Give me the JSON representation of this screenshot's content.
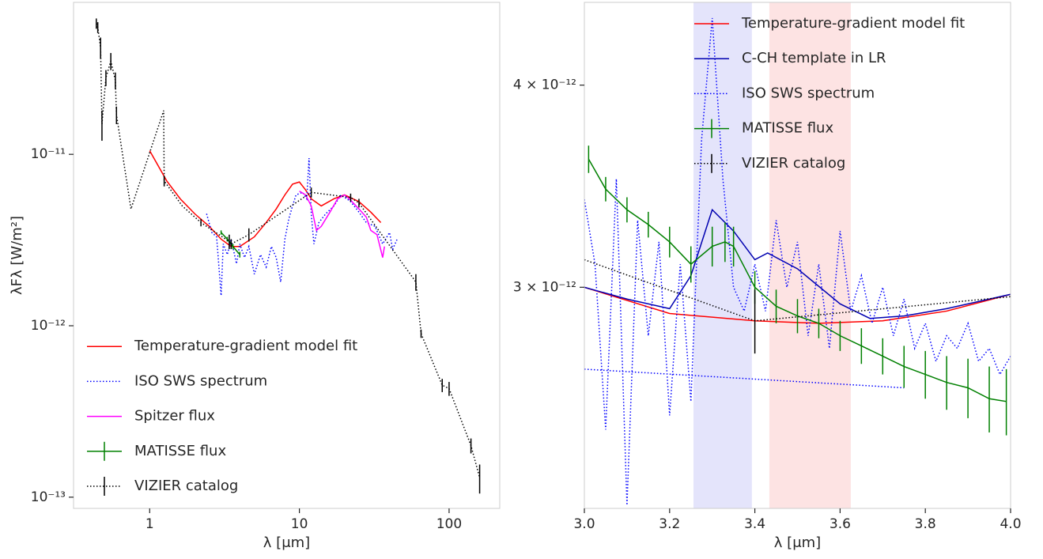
{
  "chart_data": [
    {
      "type": "line",
      "xscale": "log",
      "yscale": "log",
      "xlabel": "λ [μm]",
      "ylabel": "λFλ [W/m²]",
      "xlim": [
        0.31,
        218
      ],
      "ylim": [
        8.6e-14,
        7.7e-11
      ],
      "xticks": [
        1,
        10,
        100
      ],
      "yticks": [
        {
          "value": 1e-11,
          "label": "10⁻¹¹"
        },
        {
          "value": 1e-12,
          "label": "10⁻¹²"
        },
        {
          "value": 1e-13,
          "label": "10⁻¹³"
        }
      ],
      "legend": "lower left",
      "series": [
        {
          "name": "Temperature-gradient model fit",
          "color": "#ff0000",
          "linestyle": "solid",
          "x": [
            1.0,
            1.3,
            1.6,
            2,
            2.5,
            3,
            3.5,
            4,
            5,
            6,
            7,
            8,
            9,
            10,
            11,
            12,
            14,
            17,
            20,
            25,
            30,
            35
          ],
          "values": [
            1.05e-11,
            7e-12,
            5.5e-12,
            4.5e-12,
            3.8e-12,
            3.2e-12,
            2.9e-12,
            2.9e-12,
            3.3e-12,
            4e-12,
            4.8e-12,
            5.8e-12,
            6.7e-12,
            6.9e-12,
            6.2e-12,
            5.5e-12,
            5e-12,
            5.5e-12,
            5.8e-12,
            5.3e-12,
            4.6e-12,
            4e-12
          ]
        },
        {
          "name": "ISO SWS spectrum",
          "color": "#0000ff",
          "linestyle": "dotted",
          "x": [
            2.4,
            2.6,
            2.8,
            3.0,
            3.1,
            3.3,
            3.5,
            3.8,
            4.0,
            4.3,
            4.6,
            5.0,
            5.5,
            6.0,
            6.5,
            7.0,
            7.5,
            8.0,
            8.5,
            9.0,
            9.5,
            10.5,
            11.2,
            11.6,
            12,
            12.5,
            13.5,
            15,
            17,
            19,
            22,
            25,
            28,
            32,
            36,
            40,
            42,
            45
          ],
          "values": [
            4.5e-12,
            3.5e-12,
            3.3e-12,
            1.5e-12,
            3e-12,
            2.6e-12,
            3.2e-12,
            2.3e-12,
            3e-12,
            2.5e-12,
            2.9e-12,
            2e-12,
            2.6e-12,
            2.2e-12,
            2.9e-12,
            2.5e-12,
            1.8e-12,
            3.2e-12,
            4.2e-12,
            5e-12,
            5.8e-12,
            6e-12,
            5.5e-12,
            9.5e-12,
            4.5e-12,
            3e-12,
            4e-12,
            4.5e-12,
            5e-12,
            5.8e-12,
            5.3e-12,
            4.6e-12,
            4e-12,
            3.8e-12,
            3e-12,
            3.5e-12,
            2.8e-12,
            3.2e-12
          ]
        },
        {
          "name": "Spitzer flux",
          "color": "#ff00ff",
          "linestyle": "solid",
          "x": [
            10,
            11,
            12,
            13,
            14,
            16,
            18,
            20,
            22,
            25,
            28,
            30,
            33,
            36,
            37
          ],
          "values": [
            6.1e-12,
            5.8e-12,
            5e-12,
            3.6e-12,
            3.8e-12,
            4.6e-12,
            5.5e-12,
            5.8e-12,
            5.4e-12,
            4.8e-12,
            4.3e-12,
            3.6e-12,
            3.4e-12,
            2.5e-12,
            2.9e-12
          ]
        },
        {
          "name": "MATISSE flux",
          "color": "#008000",
          "linestyle": "solid",
          "x": [
            3.0,
            3.3,
            3.6,
            4.0
          ],
          "values": [
            3.5e-12,
            3.2e-12,
            2.9e-12,
            2.6e-12
          ],
          "errors": [
            1e-13,
            1e-13,
            1e-13,
            1e-13
          ]
        },
        {
          "name": "VIZIER catalog",
          "color": "#000000",
          "linestyle": "dotted",
          "x": [
            0.44,
            0.45,
            0.47,
            0.48,
            0.51,
            0.55,
            0.59,
            0.6,
            0.75,
            1.24,
            1.25,
            1.65,
            2.2,
            3.4,
            3.5,
            4.6,
            12,
            22,
            25,
            60,
            65,
            90,
            100,
            140,
            160
          ],
          "values": [
            5.8e-11,
            5.5e-11,
            4.2e-11,
            1.5e-11,
            2.8e-11,
            3.5e-11,
            2.7e-11,
            1.7e-11,
            4.8e-12,
            1.8e-11,
            7e-12,
            5e-12,
            4e-12,
            3.1e-12,
            3e-12,
            3.4e-12,
            6e-12,
            5.6e-12,
            5.2e-12,
            1.8e-12,
            9e-13,
            4.5e-13,
            4.3e-13,
            2e-13,
            1.3e-13
          ],
          "errors": [
            4e-12,
            4e-12,
            6e-12,
            3e-12,
            3e-12,
            4e-12,
            3e-12,
            2e-12,
            null,
            null,
            5e-13,
            null,
            2e-13,
            3e-13,
            2e-13,
            3e-13,
            4e-13,
            3e-13,
            3e-13,
            2e-13,
            5e-14,
            4e-14,
            4e-14,
            2e-14,
            2.5e-14
          ]
        }
      ]
    },
    {
      "type": "line",
      "xscale": "linear",
      "yscale": "log",
      "xlabel": "λ [μm]",
      "xlim": [
        3.0,
        4.0
      ],
      "ylim": [
        2.19e-12,
        4.5e-12
      ],
      "xticks": [
        {
          "value": 3,
          "label": "3.0"
        },
        3.2,
        3.4,
        3.6,
        3.8,
        {
          "value": 4,
          "label": "4.0"
        }
      ],
      "yticks": [
        {
          "value": 4e-12,
          "label": "4 × 10⁻¹²"
        },
        {
          "value": 3e-12,
          "label": "3 × 10⁻¹²"
        }
      ],
      "legend": "upper right",
      "bands": [
        {
          "x": [
            3.256,
            3.393
          ],
          "color": "#e4e4fb"
        },
        {
          "x": [
            3.434,
            3.625
          ],
          "color": "#fde3e3"
        }
      ],
      "series": [
        {
          "name": "Temperature-gradient model fit",
          "color": "#ff0000",
          "linestyle": "solid",
          "x": [
            3.0,
            3.2,
            3.4,
            3.55,
            3.7,
            3.85,
            4.0
          ],
          "values": [
            3e-12,
            2.89e-12,
            2.86e-12,
            2.85e-12,
            2.86e-12,
            2.9e-12,
            2.97e-12
          ]
        },
        {
          "name": "C-CH template in LR",
          "color": "#0000b0",
          "linestyle": "solid",
          "x": [
            3.0,
            3.1,
            3.2,
            3.25,
            3.3,
            3.35,
            3.4,
            3.43,
            3.5,
            3.6,
            3.67,
            3.75,
            3.85,
            4.0
          ],
          "values": [
            3e-12,
            2.95e-12,
            2.91e-12,
            3.05e-12,
            3.35e-12,
            3.25e-12,
            3.12e-12,
            3.15e-12,
            3.08e-12,
            2.93e-12,
            2.87e-12,
            2.88e-12,
            2.91e-12,
            2.97e-12
          ]
        },
        {
          "name": "ISO SWS spectrum",
          "color": "#0000ff",
          "linestyle": "dotted",
          "x": [
            3.0,
            3.025,
            3.05,
            3.075,
            3.1,
            3.125,
            3.15,
            3.175,
            3.2,
            3.225,
            3.25,
            3.275,
            3.3,
            3.325,
            3.35,
            3.375,
            3.4,
            3.425,
            3.45,
            3.475,
            3.5,
            3.525,
            3.55,
            3.575,
            3.6,
            3.625,
            3.65,
            3.675,
            3.7,
            3.725,
            3.75,
            3.775,
            3.8,
            3.825,
            3.85,
            3.875,
            3.9,
            3.925,
            3.95,
            3.975,
            4.0,
            null,
            3.0,
            3.75
          ],
          "values": [
            3.4e-12,
            3.1e-12,
            2.45e-12,
            3.5e-12,
            2.2e-12,
            3.3e-12,
            2.8e-12,
            3.2e-12,
            2.5e-12,
            3.1e-12,
            2.55e-12,
            3.7e-12,
            4.4e-12,
            3.5e-12,
            3e-12,
            2.9e-12,
            3.1e-12,
            2.9e-12,
            3.3e-12,
            3e-12,
            3.2e-12,
            2.8e-12,
            3.1e-12,
            2.75e-12,
            3.25e-12,
            2.9e-12,
            3.05e-12,
            2.85e-12,
            3e-12,
            2.8e-12,
            2.95e-12,
            2.75e-12,
            2.85e-12,
            2.7e-12,
            2.8e-12,
            2.75e-12,
            2.85e-12,
            2.7e-12,
            2.75e-12,
            2.65e-12,
            2.72e-12,
            null,
            2.67e-12,
            2.6e-12
          ]
        },
        {
          "name": "MATISSE flux",
          "color": "#008000",
          "linestyle": "solid",
          "x": [
            3.01,
            3.05,
            3.1,
            3.15,
            3.2,
            3.25,
            3.3,
            3.33,
            3.35,
            3.4,
            3.45,
            3.5,
            3.55,
            3.6,
            3.65,
            3.7,
            3.75,
            3.8,
            3.85,
            3.9,
            3.95,
            3.99
          ],
          "values": [
            3.6e-12,
            3.45e-12,
            3.35e-12,
            3.28e-12,
            3.2e-12,
            3.1e-12,
            3.18e-12,
            3.2e-12,
            3.18e-12,
            3e-12,
            2.92e-12,
            2.88e-12,
            2.85e-12,
            2.8e-12,
            2.76e-12,
            2.72e-12,
            2.68e-12,
            2.65e-12,
            2.62e-12,
            2.6e-12,
            2.56e-12,
            2.55e-12
          ],
          "errors": [
            7e-14,
            6e-14,
            6e-14,
            6e-14,
            7e-14,
            8e-14,
            9e-14,
            9e-14,
            9e-14,
            7e-14,
            7e-14,
            7e-14,
            6e-14,
            6e-14,
            7e-14,
            7e-14,
            8e-14,
            9e-14,
            1e-13,
            1.1e-13,
            1.2e-13,
            1.2e-13
          ]
        },
        {
          "name": "VIZIER catalog",
          "color": "#000000",
          "linestyle": "dotted",
          "x": [
            3.0,
            3.4,
            4.0
          ],
          "values": [
            3.12e-12,
            2.86e-12,
            2.96e-12
          ],
          "errors": [
            null,
            1.3e-13,
            null
          ]
        }
      ]
    }
  ]
}
